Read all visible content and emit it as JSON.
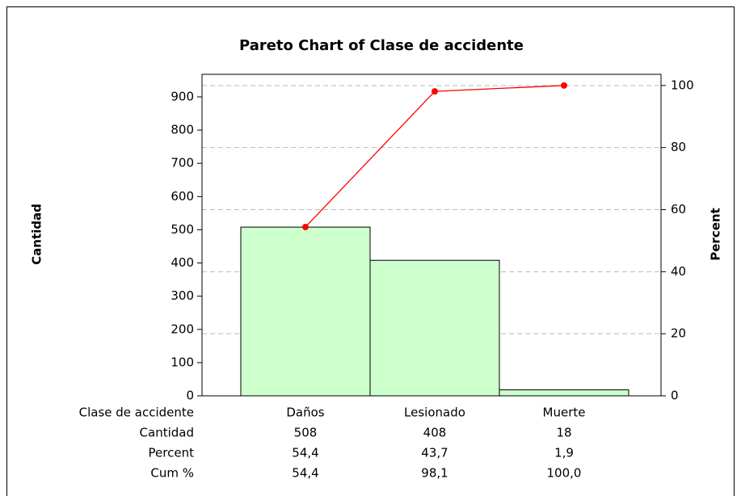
{
  "chart_data": {
    "type": "pareto",
    "title": "Pareto Chart of Clase de accidente",
    "ylabel": "Cantidad",
    "y2label": "Percent",
    "category_label": "Clase de accidente",
    "categories": [
      "Daños",
      "Lesionado",
      "Muerte"
    ],
    "series": [
      {
        "name": "Cantidad",
        "color": "#ccffcc",
        "values": [
          508,
          408,
          18
        ]
      },
      {
        "name": "Cum %",
        "color": "#ff0000",
        "axis": "y2",
        "values": [
          54.4,
          98.1,
          100.0
        ],
        "value_labels": [
          "54,4",
          "98,1",
          "100,0"
        ]
      }
    ],
    "percent": {
      "name": "Percent",
      "values": [
        54.4,
        43.7,
        1.9
      ],
      "value_labels": [
        "54,4",
        "43,7",
        "1,9"
      ]
    },
    "ylim": [
      0,
      968
    ],
    "yticks": [
      0,
      100,
      200,
      300,
      400,
      500,
      600,
      700,
      800,
      900
    ],
    "y2lim": [
      0,
      103.6
    ],
    "y2ticks": [
      0,
      20,
      40,
      60,
      80,
      100
    ],
    "grid": true
  }
}
